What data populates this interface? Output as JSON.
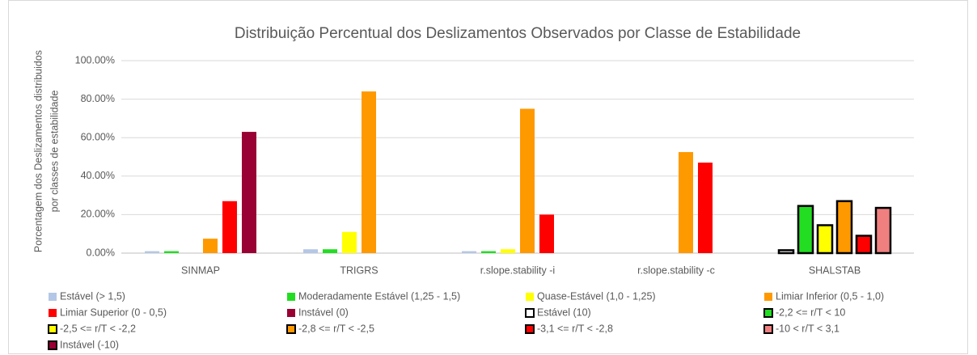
{
  "chart_data": {
    "type": "bar",
    "title": "Distribuição Percentual dos Deslizamentos Observados por Classe de Estabilidade",
    "y_label": [
      "Porcentagem dos Deslizamentos distribuidos",
      "por classes de estabilidade"
    ],
    "categories": [
      "SINMAP",
      "TRIGRS",
      "r.slope.stability -i",
      "r.slope.stability -c",
      "SHALSTAB"
    ],
    "ylim": [
      0,
      100
    ],
    "yticks": [
      {
        "value": 0,
        "label": "0.00%"
      },
      {
        "value": 20,
        "label": "20.00%"
      },
      {
        "value": 40,
        "label": "40.00%"
      },
      {
        "value": 60,
        "label": "60.00%"
      },
      {
        "value": 80,
        "label": "80.00%"
      },
      {
        "value": 100,
        "label": "100.00%"
      }
    ],
    "grid": true,
    "legend": "bottom",
    "series": [
      {
        "name": "Estável (> 1,5)",
        "color": "#b4c7e7",
        "border": false,
        "values": [
          1,
          2,
          1,
          0,
          null
        ]
      },
      {
        "name": "Moderadamente Estável (1,25 - 1,5)",
        "color": "#22dd22",
        "border": false,
        "values": [
          1,
          2,
          1,
          0,
          null
        ]
      },
      {
        "name": "Quase-Estável (1,0 - 1,25)",
        "color": "#ffff00",
        "border": false,
        "values": [
          0,
          11,
          2,
          0,
          null
        ]
      },
      {
        "name": "Limiar Inferior (0,5 - 1,0)",
        "color": "#ff9900",
        "border": false,
        "values": [
          7.5,
          84,
          75,
          52.5,
          null
        ]
      },
      {
        "name": "Limiar Superior (0 - 0,5)",
        "color": "#ff0000",
        "border": false,
        "values": [
          27,
          0,
          20,
          47,
          null
        ]
      },
      {
        "name": "Instável (0)",
        "color": "#990033",
        "border": false,
        "values": [
          63,
          0,
          0,
          0,
          null
        ]
      },
      {
        "name": "Estável (10)",
        "color": "#ffffff",
        "border": true,
        "values": [
          null,
          null,
          null,
          null,
          1.5
        ]
      },
      {
        "name": "-2,2 <= r/T < 10",
        "color": "#22dd22",
        "border": true,
        "values": [
          null,
          null,
          null,
          null,
          24.5
        ]
      },
      {
        "name": "-2,5 <= r/T < -2,2",
        "color": "#ffff00",
        "border": true,
        "values": [
          null,
          null,
          null,
          null,
          14.5
        ]
      },
      {
        "name": "-2,8 <= r/T < -2,5",
        "color": "#ff9900",
        "border": true,
        "values": [
          null,
          null,
          null,
          null,
          27
        ]
      },
      {
        "name": "-3,1 <= r/T < -2,8",
        "color": "#ff0000",
        "border": true,
        "values": [
          null,
          null,
          null,
          null,
          9
        ]
      },
      {
        "name": "-10 < r/T < 3,1",
        "color": "#f08080",
        "border": true,
        "values": [
          null,
          null,
          null,
          null,
          23.5
        ]
      },
      {
        "name": "Instável (-10)",
        "color": "#990033",
        "border": true,
        "values": [
          null,
          null,
          null,
          null,
          null
        ]
      }
    ]
  }
}
